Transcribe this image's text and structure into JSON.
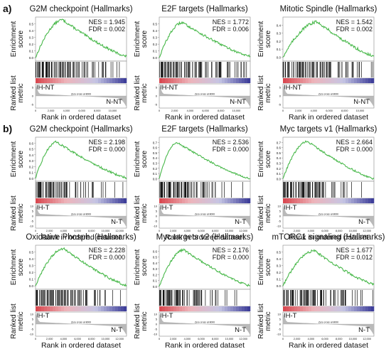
{
  "figure": {
    "section_labels": [
      "a)",
      "b)"
    ],
    "enrichment_axis_label_lines": [
      "Enrichment",
      "score"
    ],
    "ranked_axis_label_lines": [
      "Ranked list",
      "metric"
    ],
    "rank_label": "Rank in ordered dataset",
    "zero_cross_label": "Zero cross at 8000"
  },
  "colors": {
    "curve": "#48b84a",
    "hits": "#111111",
    "heat_red": "#d94a52",
    "heat_pink": "#eeb4ba",
    "heat_lavender": "#c5c5e4",
    "heat_blue": "#3f3f9a",
    "metric_fill": "#b9b9b9",
    "frame": "#888888"
  },
  "chart_data": [
    {
      "type": "line",
      "section": "a)",
      "title": "G2M checkpoint (Hallmarks)",
      "nes_label": "NES = 1.945",
      "fdr_label": "FDR = 0.002",
      "left_group": "IH-NT",
      "right_group": "N-NT",
      "xlabel": "Rank in ordered dataset",
      "ylabel": "Enrichment score",
      "x_ticks": [
        "0",
        "2,000",
        "4,000",
        "6,000",
        "8,000",
        "10,000"
      ],
      "xlim": [
        0,
        11800
      ],
      "y_ticks": [
        "0.0",
        "0.1",
        "0.2",
        "0.3",
        "0.4",
        "0.5"
      ],
      "ylim": [
        -0.05,
        0.6
      ],
      "metric_y_ticks": [
        "5",
        "0",
        "-5"
      ],
      "metric_ylim": [
        -7,
        7
      ],
      "peak_rank": 3500,
      "peak_es": 0.56,
      "end_es": 0.02,
      "hit_density": [
        0.95,
        0.9,
        0.8,
        0.7,
        0.6,
        0.5,
        0.4,
        0.3,
        0.25,
        0.2,
        0.15,
        0.1
      ],
      "grid": false
    },
    {
      "type": "line",
      "section": "a)",
      "title": "E2F targets (Hallmarks)",
      "nes_label": "NES = 1.772",
      "fdr_label": "FDR = 0.006",
      "left_group": "IH-NT",
      "right_group": "N-NT",
      "xlabel": "Rank in ordered dataset",
      "ylabel": "Enrichment score",
      "x_ticks": [
        "0",
        "2,000",
        "4,000",
        "6,000",
        "8,000",
        "10,000"
      ],
      "xlim": [
        0,
        11800
      ],
      "y_ticks": [
        "0.0",
        "0.1",
        "0.2",
        "0.3",
        "0.4",
        "0.5"
      ],
      "ylim": [
        -0.05,
        0.6
      ],
      "metric_y_ticks": [
        "5",
        "0",
        "-5"
      ],
      "metric_ylim": [
        -7,
        7
      ],
      "peak_rank": 3000,
      "peak_es": 0.52,
      "end_es": 0.02,
      "hit_density": [
        0.9,
        0.85,
        0.75,
        0.65,
        0.55,
        0.5,
        0.45,
        0.4,
        0.35,
        0.3,
        0.25,
        0.2
      ],
      "grid": false
    },
    {
      "type": "line",
      "section": "a)",
      "title": "Mitotic Spindle (Hallmarks)",
      "nes_label": "NES = 1.542",
      "fdr_label": "FDR = 0.002",
      "left_group": "IH-NT",
      "right_group": "N-NT",
      "xlabel": "Rank in ordered dataset",
      "ylabel": "Enrichment score",
      "x_ticks": [
        "0",
        "2,000",
        "4,000",
        "6,000",
        "8,000",
        "10,000"
      ],
      "xlim": [
        0,
        11800
      ],
      "y_ticks": [
        "0.0",
        "0.1",
        "0.2",
        "0.3",
        "0.4"
      ],
      "ylim": [
        -0.05,
        0.5
      ],
      "metric_y_ticks": [
        "5",
        "0",
        "-5"
      ],
      "metric_ylim": [
        -7,
        7
      ],
      "peak_rank": 4500,
      "peak_es": 0.44,
      "end_es": 0.01,
      "hit_density": [
        0.8,
        0.75,
        0.7,
        0.65,
        0.6,
        0.55,
        0.45,
        0.35,
        0.3,
        0.25,
        0.2,
        0.15
      ],
      "grid": false
    },
    {
      "type": "line",
      "section": "b)",
      "title": "G2M checkpoint (Hallmarks)",
      "nes_label": "NES = 2.198",
      "fdr_label": "FDR = 0.000",
      "left_group": "IH-T",
      "right_group": "N-T",
      "xlabel": "Rank in ordered dataset",
      "ylabel": "Enrichment score",
      "x_ticks": [
        "0",
        "2,000",
        "4,000",
        "6,000",
        "8,000",
        "10,000",
        "12,000"
      ],
      "xlim": [
        0,
        13000
      ],
      "y_ticks": [
        "0.0",
        "0.1",
        "0.2",
        "0.3",
        "0.4",
        "0.5",
        "0.6"
      ],
      "ylim": [
        -0.05,
        0.7
      ],
      "metric_y_ticks": [
        "10",
        "5",
        "0",
        "-5",
        "-10"
      ],
      "metric_ylim": [
        -12,
        12
      ],
      "peak_rank": 3000,
      "peak_es": 0.62,
      "end_es": 0.01,
      "hit_density": [
        1.0,
        0.95,
        0.85,
        0.7,
        0.55,
        0.4,
        0.3,
        0.2,
        0.15,
        0.1,
        0.08,
        0.05
      ],
      "grid": false
    },
    {
      "type": "line",
      "section": "b)",
      "title": "E2F targets (Hallmarks)",
      "nes_label": "NES = 2.536",
      "fdr_label": "FDR = 0.000",
      "left_group": "IH-T",
      "right_group": "N-T",
      "xlabel": "Rank in ordered dataset",
      "ylabel": "Enrichment score",
      "x_ticks": [
        "0",
        "2,000",
        "4,000",
        "6,000",
        "8,000",
        "10,000",
        "12,000"
      ],
      "xlim": [
        0,
        13000
      ],
      "y_ticks": [
        "0.0",
        "0.1",
        "0.2",
        "0.3",
        "0.4",
        "0.5",
        "0.6",
        "0.7"
      ],
      "ylim": [
        -0.05,
        0.8
      ],
      "metric_y_ticks": [
        "10",
        "5",
        "0",
        "-5",
        "-10"
      ],
      "metric_ylim": [
        -12,
        12
      ],
      "peak_rank": 2500,
      "peak_es": 0.7,
      "end_es": 0.0,
      "hit_density": [
        1.0,
        1.0,
        0.9,
        0.75,
        0.55,
        0.4,
        0.3,
        0.2,
        0.12,
        0.08,
        0.05,
        0.03
      ],
      "grid": false
    },
    {
      "type": "line",
      "section": "b)",
      "title": "Myc targets v1 (Hallmarks)",
      "nes_label": "NES = 2.664",
      "fdr_label": "FDR = 0.000",
      "left_group": "IH-T",
      "right_group": "N-T",
      "xlabel": "Rank in ordered dataset",
      "ylabel": "Enrichment score",
      "x_ticks": [
        "0",
        "2,000",
        "4,000",
        "6,000",
        "8,000",
        "10,000",
        "12,000"
      ],
      "xlim": [
        0,
        13000
      ],
      "y_ticks": [
        "0.0",
        "0.1",
        "0.2",
        "0.3",
        "0.4",
        "0.5",
        "0.6",
        "0.7"
      ],
      "ylim": [
        -0.05,
        0.8
      ],
      "metric_y_ticks": [
        "10",
        "5",
        "0",
        "-5",
        "-10"
      ],
      "metric_ylim": [
        -12,
        12
      ],
      "peak_rank": 3500,
      "peak_es": 0.72,
      "end_es": 0.0,
      "hit_density": [
        1.0,
        1.0,
        0.95,
        0.9,
        0.7,
        0.45,
        0.3,
        0.2,
        0.12,
        0.08,
        0.05,
        0.03
      ],
      "grid": false
    },
    {
      "type": "line",
      "section": "b)",
      "title": "Oxidative Phosph. (Hallmarks)",
      "nes_label": "NES = 2.228",
      "fdr_label": "FDR = 0.000",
      "left_group": "IH-T",
      "right_group": "N-T",
      "xlabel": "Rank in ordered dataset",
      "ylabel": "Enrichment score",
      "x_ticks": [
        "0",
        "2,000",
        "4,000",
        "6,000",
        "8,000",
        "10,000",
        "12,000"
      ],
      "xlim": [
        0,
        13000
      ],
      "y_ticks": [
        "0.0",
        "0.1",
        "0.2",
        "0.3",
        "0.4",
        "0.5"
      ],
      "ylim": [
        -0.05,
        0.6
      ],
      "metric_y_ticks": [
        "10",
        "5",
        "0",
        "-5",
        "-10"
      ],
      "metric_ylim": [
        -12,
        12
      ],
      "peak_rank": 4000,
      "peak_es": 0.55,
      "end_es": 0.01,
      "hit_density": [
        0.9,
        0.9,
        0.85,
        0.8,
        0.7,
        0.55,
        0.45,
        0.3,
        0.2,
        0.15,
        0.1,
        0.05
      ],
      "grid": false
    },
    {
      "type": "line",
      "section": "b)",
      "title": "Myc targets v2 (Hallmarks)",
      "nes_label": "NES = 2.176",
      "fdr_label": "FDR = 0.000",
      "left_group": "IH-T",
      "right_group": "N-T",
      "xlabel": "Rank in ordered dataset",
      "ylabel": "Enrichment score",
      "x_ticks": [
        "0",
        "2,000",
        "4,000",
        "6,000",
        "8,000",
        "10,000",
        "12,000"
      ],
      "xlim": [
        0,
        13000
      ],
      "y_ticks": [
        "0.0",
        "0.1",
        "0.2",
        "0.3",
        "0.4",
        "0.5",
        "0.6"
      ],
      "ylim": [
        -0.05,
        0.7
      ],
      "metric_y_ticks": [
        "10",
        "5",
        "0",
        "-5",
        "-10"
      ],
      "metric_ylim": [
        -12,
        12
      ],
      "peak_rank": 3500,
      "peak_es": 0.62,
      "end_es": 0.01,
      "hit_density": [
        0.9,
        0.85,
        0.8,
        0.7,
        0.6,
        0.45,
        0.3,
        0.2,
        0.15,
        0.1,
        0.05,
        0.03
      ],
      "grid": false
    },
    {
      "type": "line",
      "section": "b)",
      "title": "mTORC1 signaling (Hallmarks)",
      "nes_label": "NES = 1.677",
      "fdr_label": "FDR = 0.012",
      "left_group": "IH-T",
      "right_group": "N-T",
      "xlabel": "Rank in ordered dataset",
      "ylabel": "Enrichment score",
      "x_ticks": [
        "0",
        "2,000",
        "4,000",
        "6,000",
        "8,000",
        "10,000",
        "12,000"
      ],
      "xlim": [
        0,
        13000
      ],
      "y_ticks": [
        "0.0",
        "0.1",
        "0.2",
        "0.3",
        "0.4",
        "0.5"
      ],
      "ylim": [
        -0.05,
        0.6
      ],
      "metric_y_ticks": [
        "10",
        "5",
        "0",
        "-5",
        "-10"
      ],
      "metric_ylim": [
        -12,
        12
      ],
      "peak_rank": 4500,
      "peak_es": 0.52,
      "end_es": 0.02,
      "hit_density": [
        0.8,
        0.8,
        0.75,
        0.7,
        0.65,
        0.55,
        0.45,
        0.35,
        0.25,
        0.2,
        0.15,
        0.1
      ],
      "grid": false
    }
  ]
}
